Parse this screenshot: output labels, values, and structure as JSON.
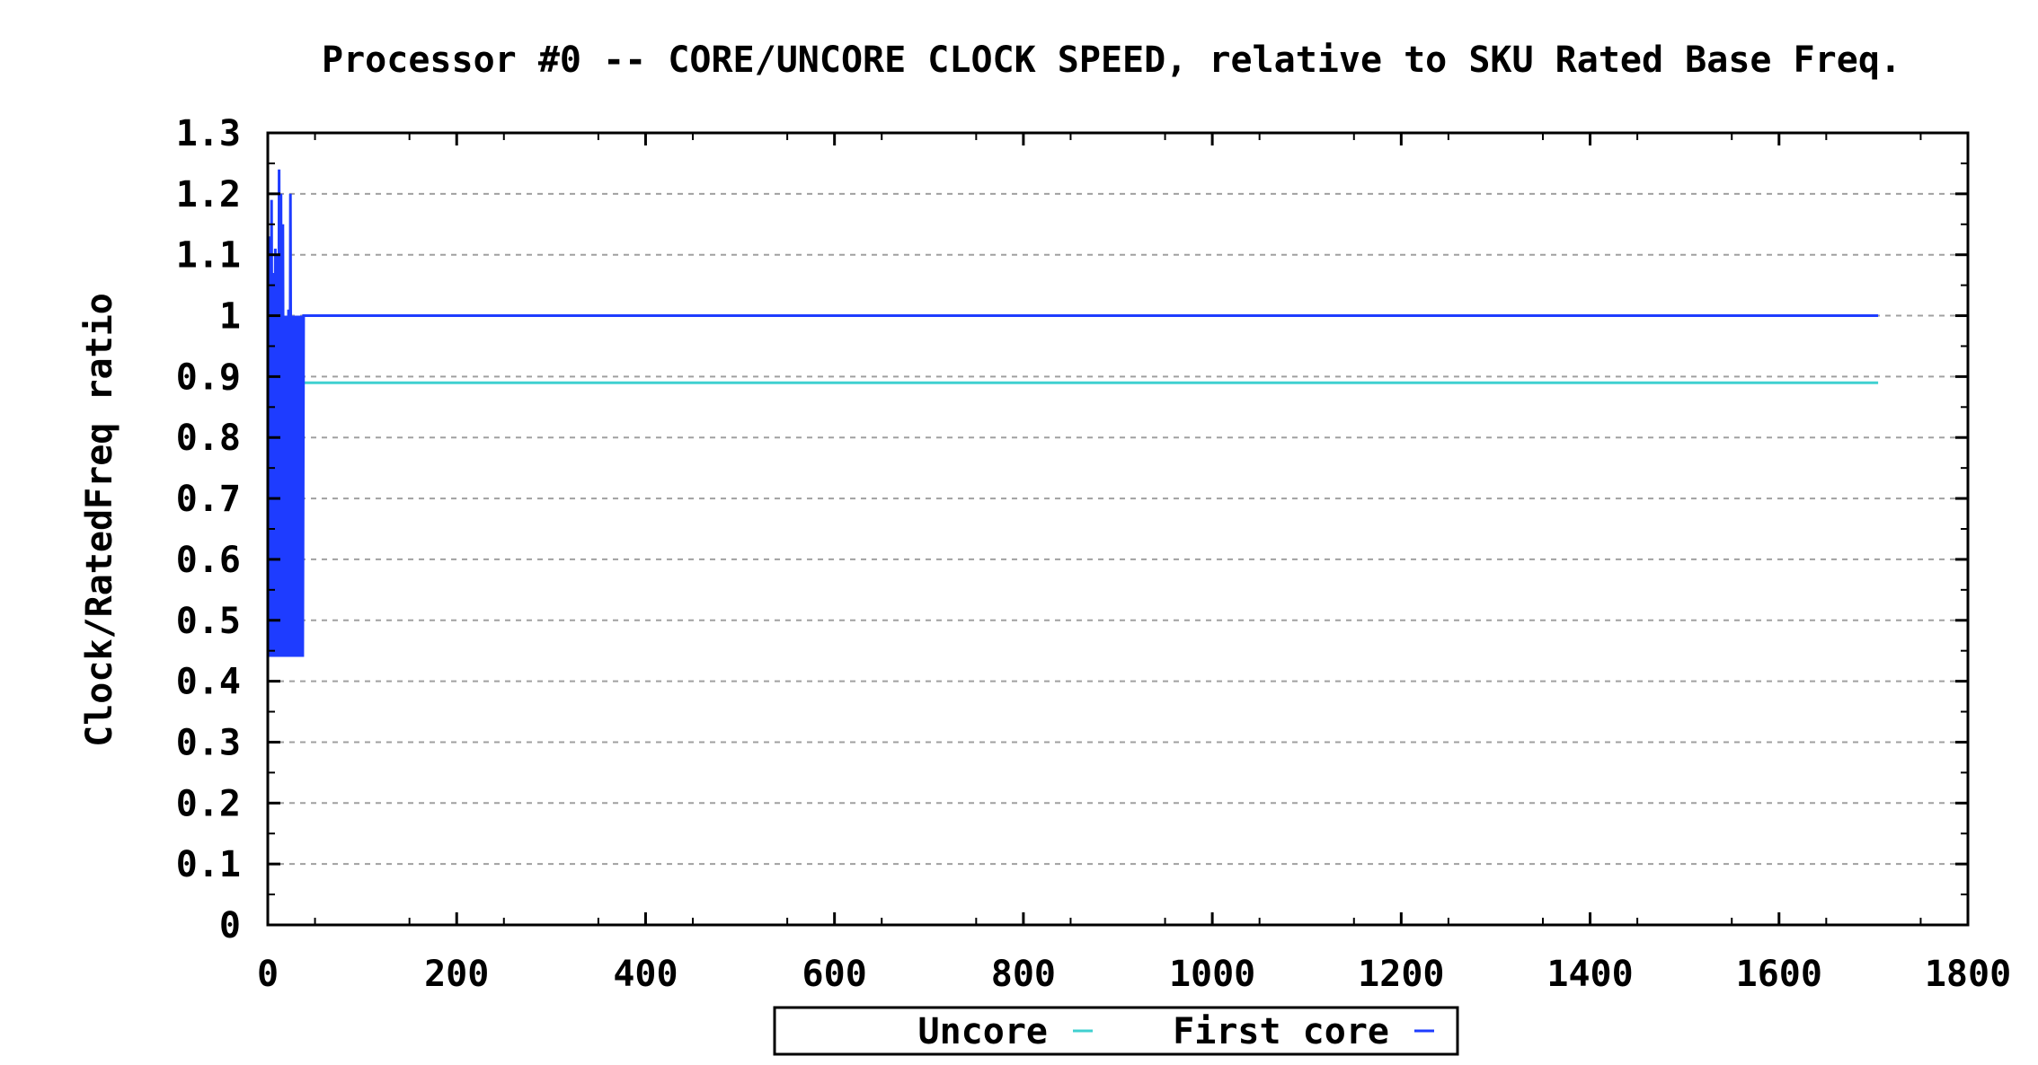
{
  "chart_data": {
    "type": "line",
    "title": "Processor #0 -- CORE/UNCORE CLOCK SPEED, relative to SKU Rated Base Freq.",
    "xlabel": "",
    "ylabel": "Clock/RatedFreq ratio",
    "xlim": [
      0,
      1800
    ],
    "ylim": [
      0,
      1.3
    ],
    "xticks": [
      0,
      200,
      400,
      600,
      800,
      1000,
      1200,
      1400,
      1600,
      1800
    ],
    "yticks": [
      0,
      0.1,
      0.2,
      0.3,
      0.4,
      0.5,
      0.6,
      0.7,
      0.8,
      0.9,
      1,
      1.1,
      1.2,
      1.3
    ],
    "ytick_labels": [
      "0",
      "0.1",
      "0.2",
      "0.3",
      "0.4",
      "0.5",
      "0.6",
      "0.7",
      "0.8",
      "0.9",
      "1",
      "1.1",
      "1.2",
      "1.3"
    ],
    "grid": {
      "y": true,
      "x": false,
      "style": "dotted"
    },
    "legend_position": "bottom-center",
    "series": [
      {
        "name": "Uncore",
        "color": "#40d0d0",
        "x": [
          38,
          1705
        ],
        "y": [
          0.89,
          0.89
        ]
      },
      {
        "name": "First core",
        "color": "#1e3cff",
        "x": [
          0,
          1,
          2,
          3,
          4,
          5,
          6,
          7,
          8,
          9,
          10,
          11,
          12,
          13,
          14,
          15,
          16,
          17,
          18,
          19,
          20,
          21,
          22,
          23,
          24,
          25,
          26,
          27,
          28,
          29,
          30,
          31,
          32,
          33,
          34,
          35,
          36,
          37,
          38,
          39,
          40,
          200,
          400,
          600,
          800,
          1000,
          1200,
          1400,
          1600,
          1705
        ],
        "y": [
          1.14,
          0.44,
          1.13,
          0.44,
          1.19,
          0.44,
          1.07,
          0.44,
          1.11,
          0.44,
          1.1,
          0.44,
          1.24,
          0.44,
          1.2,
          0.44,
          1.15,
          0.44,
          1.0,
          0.44,
          1.0,
          0.44,
          1.01,
          0.44,
          1.2,
          0.44,
          1.0,
          0.44,
          1.0,
          0.44,
          1.0,
          0.44,
          1.0,
          0.44,
          1.0,
          0.44,
          1.0,
          0.44,
          1.0,
          1.0,
          1.0,
          1.0,
          1.0,
          1.0,
          1.0,
          1.0,
          1.0,
          1.0,
          1.0,
          1.0
        ]
      }
    ]
  }
}
